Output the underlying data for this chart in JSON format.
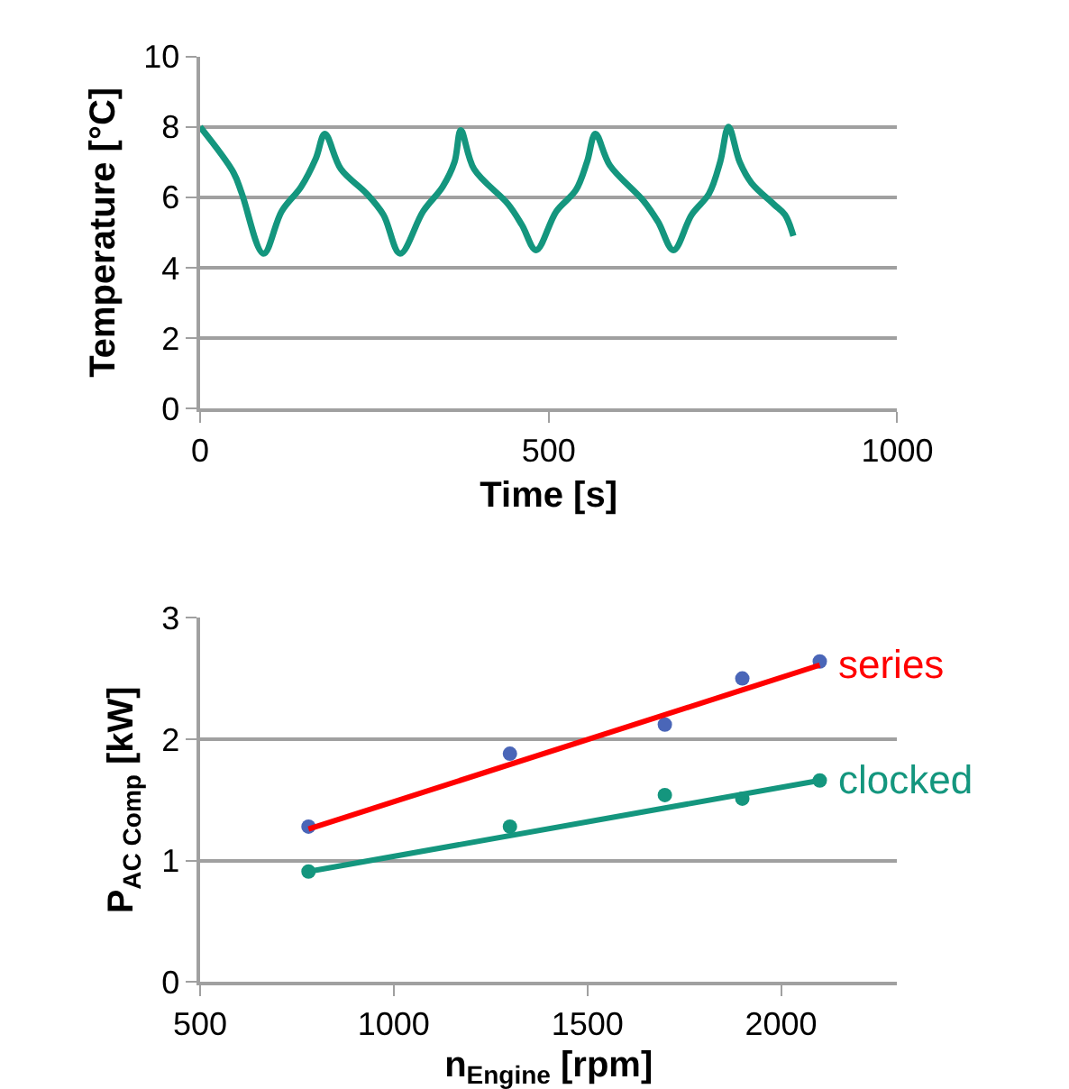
{
  "chart_data": [
    {
      "type": "line",
      "xlabel": "Time [s]",
      "ylabel": "Temperature [°C]",
      "xlim": [
        0,
        1000
      ],
      "xticks": [
        0,
        500,
        1000
      ],
      "ylim": [
        0,
        10
      ],
      "yticks": [
        0,
        2,
        4,
        6,
        8,
        10
      ],
      "grid": "y",
      "marker": "none",
      "line_style": "solid",
      "series": [
        {
          "color": "#14967e",
          "x": [
            0,
            48,
            60,
            91,
            117,
            145,
            166,
            179,
            202,
            239,
            263,
            287,
            320,
            348,
            365,
            374,
            393,
            442,
            462,
            482,
            511,
            539,
            555,
            567,
            588,
            636,
            657,
            679,
            705,
            730,
            746,
            758,
            774,
            791,
            823,
            839,
            851
          ],
          "values": [
            8.0,
            6.7,
            6.1,
            4.4,
            5.6,
            6.3,
            7.1,
            7.8,
            6.8,
            6.1,
            5.5,
            4.4,
            5.6,
            6.3,
            7.0,
            7.9,
            6.8,
            5.8,
            5.2,
            4.5,
            5.6,
            6.2,
            7.0,
            7.8,
            6.9,
            5.9,
            5.3,
            4.5,
            5.5,
            6.1,
            7.0,
            8.0,
            7.0,
            6.4,
            5.8,
            5.5,
            4.9
          ]
        }
      ]
    },
    {
      "type": "scatter",
      "xlabel": "n$_{Engine}$ [rpm]",
      "ylabel": "P$_{AC Comp}$ [kW]",
      "xlim": [
        500,
        2300
      ],
      "xticks": [
        500,
        1000,
        1500,
        2000
      ],
      "ylim": [
        0,
        3
      ],
      "yticks": [
        0,
        1,
        2,
        3
      ],
      "grid": "y",
      "marker": "circle",
      "series": [
        {
          "color": "#4a66b8",
          "x": [
            780,
            1300,
            1700,
            1900,
            2100
          ],
          "values": [
            1.28,
            1.88,
            2.12,
            2.5,
            2.64
          ]
        },
        {
          "color": "#14967e",
          "x": [
            780,
            1300,
            1700,
            1900,
            2100
          ],
          "values": [
            0.91,
            1.28,
            1.54,
            1.51,
            1.66
          ]
        },
        {
          "type": "line",
          "name": "series",
          "color": "#ff0000",
          "x": [
            780,
            2100
          ],
          "values": [
            1.26,
            2.61
          ],
          "line_style": "solid",
          "marker": "none"
        },
        {
          "type": "line",
          "name": "clocked",
          "color": "#14967e",
          "x": [
            780,
            2100
          ],
          "values": [
            0.91,
            1.66
          ],
          "line_style": "solid",
          "marker": "none"
        }
      ]
    }
  ]
}
